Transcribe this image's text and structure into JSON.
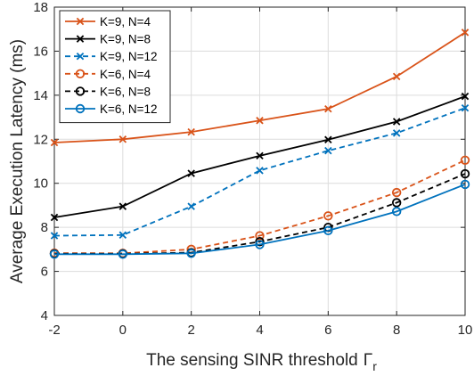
{
  "chart_data": {
    "type": "line",
    "title": "",
    "xlabel": "The sensing SINR threshold",
    "xlabel_symbol": "Γ",
    "xlabel_subscript": "r",
    "ylabel": "Average Execution Latency (ms)",
    "x": [
      -2,
      0,
      2,
      4,
      6,
      8,
      10
    ],
    "xlim": [
      -2,
      10
    ],
    "ylim": [
      4,
      18
    ],
    "xticks": [
      "-2",
      "0",
      "2",
      "4",
      "6",
      "8",
      "10"
    ],
    "yticks": [
      "4",
      "6",
      "8",
      "10",
      "12",
      "14",
      "16",
      "18"
    ],
    "grid": true,
    "legend_position": "top-left",
    "series": [
      {
        "name": "K=9, N=4",
        "values": [
          11.85,
          12.0,
          12.33,
          12.85,
          13.38,
          14.85,
          16.85
        ],
        "color": "#D95319",
        "dash": "solid",
        "marker": "x"
      },
      {
        "name": "K=9, N=8",
        "values": [
          8.45,
          8.95,
          10.45,
          11.25,
          11.98,
          12.8,
          13.95
        ],
        "color": "#000000",
        "dash": "solid",
        "marker": "x"
      },
      {
        "name": "K=9, N=12",
        "values": [
          7.62,
          7.65,
          8.95,
          10.58,
          11.48,
          12.28,
          13.42
        ],
        "color": "#0072BD",
        "dash": "dashed",
        "marker": "x"
      },
      {
        "name": "K=6, N=4",
        "values": [
          6.83,
          6.82,
          7.0,
          7.62,
          8.52,
          9.58,
          11.05
        ],
        "color": "#D95319",
        "dash": "dashed",
        "marker": "circle"
      },
      {
        "name": "K=6, N=8",
        "values": [
          6.8,
          6.8,
          6.85,
          7.35,
          8.0,
          9.12,
          10.43
        ],
        "color": "#000000",
        "dash": "dashed",
        "marker": "circle"
      },
      {
        "name": "K=6, N=12",
        "values": [
          6.78,
          6.78,
          6.82,
          7.22,
          7.85,
          8.72,
          9.95
        ],
        "color": "#0072BD",
        "dash": "solid",
        "marker": "circle"
      }
    ]
  }
}
